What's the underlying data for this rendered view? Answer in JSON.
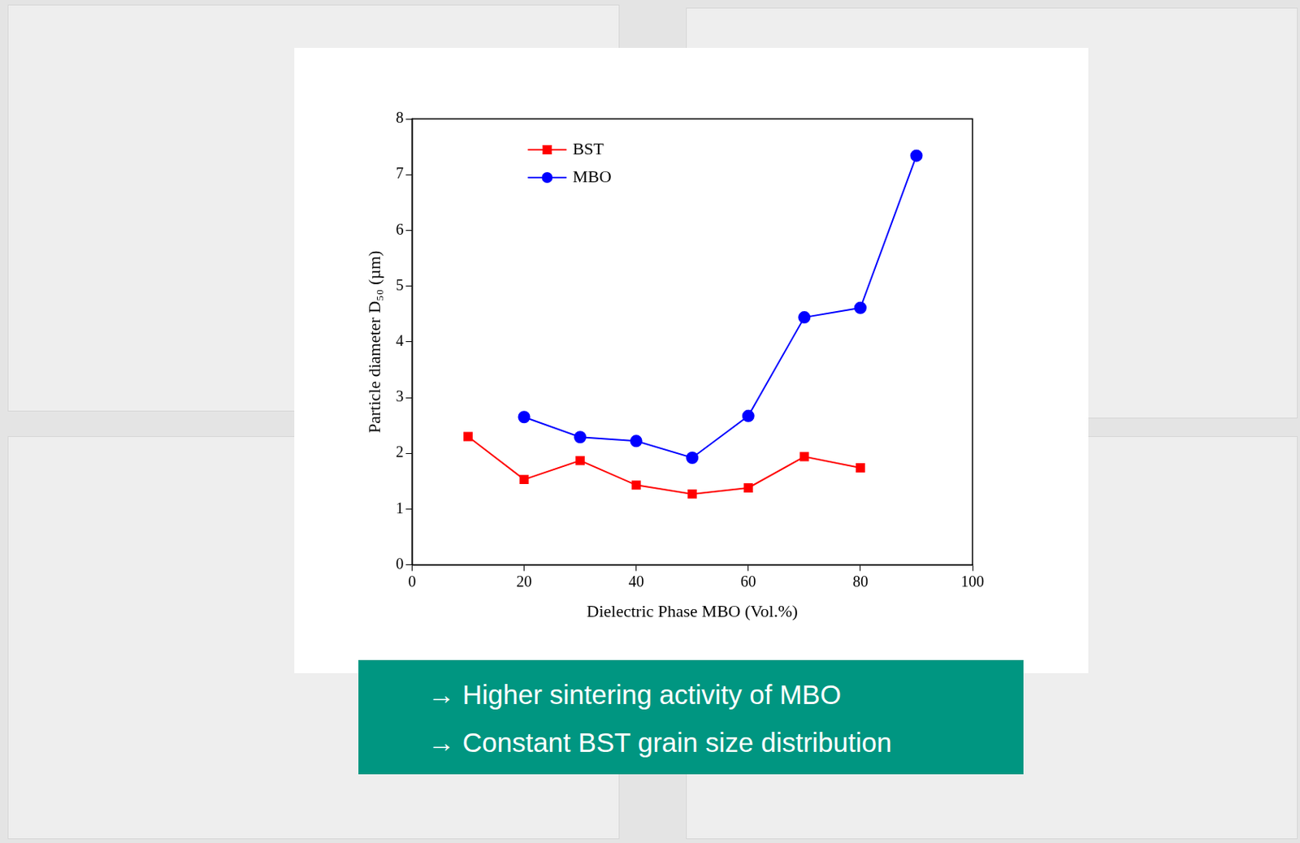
{
  "chart_data": {
    "type": "line",
    "x_label": "Dielectric Phase MBO (Vol.%)",
    "y_label": "Particle diameter D₅₀ (µm)",
    "x": [
      10,
      20,
      30,
      40,
      50,
      60,
      70,
      80,
      90
    ],
    "series": [
      {
        "name": "BST",
        "color": "#ff0000",
        "marker": "square",
        "line_style": "solid",
        "values": [
          2.3,
          1.53,
          1.87,
          1.43,
          1.27,
          1.38,
          1.94,
          1.74,
          null
        ]
      },
      {
        "name": "MBO",
        "color": "#0000ff",
        "marker": "circle",
        "line_style": "solid",
        "values": [
          null,
          2.65,
          2.29,
          2.22,
          1.92,
          2.67,
          4.44,
          4.61,
          7.34
        ]
      }
    ],
    "xlim": [
      0,
      100
    ],
    "xticks": [
      0,
      20,
      40,
      60,
      80,
      100
    ],
    "ylim": [
      0,
      8
    ],
    "yticks": [
      0,
      1,
      2,
      3,
      4,
      5,
      6,
      7,
      8
    ],
    "grid": false,
    "legend": "upper left",
    "annotations": [
      "→ Higher sintering activity of MBO",
      "→ Constant BST grain size distribution"
    ]
  }
}
